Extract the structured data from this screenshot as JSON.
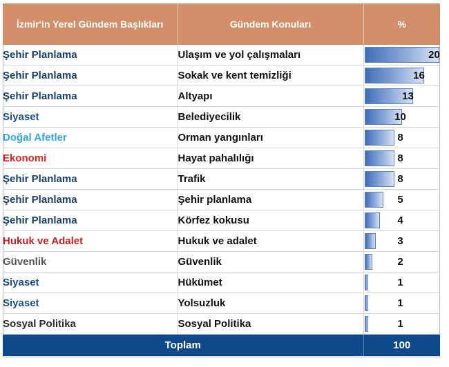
{
  "header": {
    "col1": "İzmir'in Yerel Gündem Başlıkları",
    "col2": "Gündem Konuları",
    "col3": "%"
  },
  "colors": {
    "Şehir Planlama": "#17416b",
    "Siyaset": "#1e4f86",
    "Doğal Afetler": "#31a9e0",
    "Ekonomi": "#e0211f",
    "Hukuk ve Adalet": "#c4211f",
    "Güvenlik": "#555555",
    "Sosyal Politika": "#2b2b2b"
  },
  "chart_data": {
    "type": "table",
    "columns": [
      "İzmir'in Yerel Gündem Başlıkları",
      "Gündem Konuları",
      "%"
    ],
    "rows": [
      {
        "category": "Şehir Planlama",
        "topic": "Ulaşım ve yol çalışmaları",
        "value": 20
      },
      {
        "category": "Şehir Planlama",
        "topic": "Sokak ve kent temizliği",
        "value": 16
      },
      {
        "category": "Şehir Planlama",
        "topic": "Altyapı",
        "value": 13
      },
      {
        "category": "Siyaset",
        "topic": "Belediyecilik",
        "value": 10
      },
      {
        "category": "Doğal Afetler",
        "topic": "Orman yangınları",
        "value": 8
      },
      {
        "category": "Ekonomi",
        "topic": "Hayat pahalılığı",
        "value": 8
      },
      {
        "category": "Şehir Planlama",
        "topic": "Trafik",
        "value": 8
      },
      {
        "category": "Şehir Planlama",
        "topic": "Şehir planlama",
        "value": 5
      },
      {
        "category": "Şehir Planlama",
        "topic": "Körfez kokusu",
        "value": 4
      },
      {
        "category": "Hukuk ve Adalet",
        "topic": "Hukuk ve adalet",
        "value": 3
      },
      {
        "category": "Güvenlik",
        "topic": "Güvenlik",
        "value": 2
      },
      {
        "category": "Siyaset",
        "topic": "Hükümet",
        "value": 1
      },
      {
        "category": "Siyaset",
        "topic": "Yolsuzluk",
        "value": 1
      },
      {
        "category": "Sosyal Politika",
        "topic": "Sosyal Politika",
        "value": 1
      }
    ],
    "bar_max": 20,
    "total_label": "Toplam",
    "total_value": 100
  }
}
